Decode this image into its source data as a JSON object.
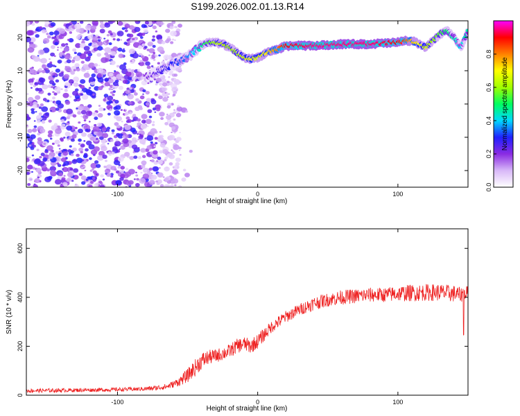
{
  "title": "S199.2026.002.01.13.R14",
  "chart_data": [
    {
      "type": "heatmap",
      "xlabel": "Height of straight line (km)",
      "ylabel": "Frequency (Hz)",
      "xlim": [
        -165,
        150
      ],
      "ylim": [
        -25,
        25
      ],
      "xticks": [
        -100,
        0,
        100
      ],
      "yticks": [
        -20,
        -10,
        0,
        10,
        20
      ],
      "colorbar": {
        "label": "Normalized spectral amplitude",
        "range": [
          0,
          1
        ],
        "ticks": [
          0.0,
          0.2,
          0.4,
          0.6,
          0.8
        ],
        "colormap": [
          "#ffffff",
          "#d8b8f8",
          "#8a2be2",
          "#2020ff",
          "#00d8ff",
          "#00ff60",
          "#a0ff00",
          "#ffff00",
          "#ff8000",
          "#ff0000",
          "#ff00ff"
        ]
      },
      "ridge": {
        "x": [
          -80,
          -70,
          -60,
          -50,
          -45,
          -40,
          -35,
          -30,
          -25,
          -20,
          -15,
          -10,
          -5,
          0,
          5,
          10,
          15,
          20,
          40,
          60,
          80,
          100,
          105,
          110,
          115,
          120,
          125,
          130,
          135,
          140,
          145,
          150
        ],
        "y": [
          8,
          10,
          12,
          14,
          16,
          17.5,
          18.5,
          18.5,
          18,
          17,
          15.5,
          14,
          13.5,
          14,
          15,
          16,
          16.5,
          17.5,
          17.5,
          18,
          18,
          18.5,
          19,
          19,
          18,
          17,
          19,
          21,
          22,
          20,
          17,
          22
        ],
        "amplitude": [
          0.2,
          0.25,
          0.3,
          0.35,
          0.4,
          0.45,
          0.55,
          0.6,
          0.65,
          0.6,
          0.6,
          0.65,
          0.7,
          0.65,
          0.7,
          0.75,
          0.8,
          0.9,
          0.95,
          0.95,
          0.95,
          0.9,
          0.85,
          0.75,
          0.7,
          0.65,
          0.6,
          0.55,
          0.5,
          0.45,
          0.4,
          0.45
        ]
      },
      "noise_region": {
        "x": [
          -165,
          -55
        ],
        "y": [
          -25,
          25
        ],
        "amplitude": [
          0.05,
          0.3
        ]
      }
    },
    {
      "type": "line",
      "xlabel": "Height of straight line (km)",
      "ylabel": "SNR (10 * v/v)",
      "xlim": [
        -165,
        150
      ],
      "ylim": [
        0,
        680
      ],
      "xticks": [
        -100,
        0,
        100
      ],
      "yticks": [
        0,
        200,
        400,
        600
      ],
      "series": [
        {
          "color": "#ee2020",
          "x": [
            -165,
            -140,
            -110,
            -85,
            -75,
            -65,
            -60,
            -55,
            -50,
            -45,
            -40,
            -35,
            -30,
            -25,
            -20,
            -15,
            -10,
            -5,
            0,
            5,
            10,
            15,
            20,
            30,
            40,
            50,
            60,
            70,
            80,
            90,
            100,
            110,
            120,
            130,
            140,
            145,
            148,
            150
          ],
          "y": [
            18,
            20,
            22,
            25,
            28,
            35,
            45,
            60,
            80,
            110,
            140,
            155,
            160,
            170,
            180,
            200,
            210,
            200,
            220,
            250,
            280,
            300,
            320,
            350,
            375,
            390,
            400,
            405,
            410,
            410,
            415,
            418,
            420,
            420,
            415,
            410,
            420,
            415
          ],
          "jitter": [
            8,
            8,
            8,
            8,
            10,
            12,
            14,
            20,
            28,
            35,
            35,
            30,
            28,
            28,
            28,
            30,
            30,
            30,
            30,
            28,
            25,
            25,
            25,
            25,
            28,
            28,
            30,
            30,
            30,
            30,
            32,
            35,
            35,
            35,
            35,
            30,
            30,
            30
          ]
        }
      ]
    }
  ]
}
